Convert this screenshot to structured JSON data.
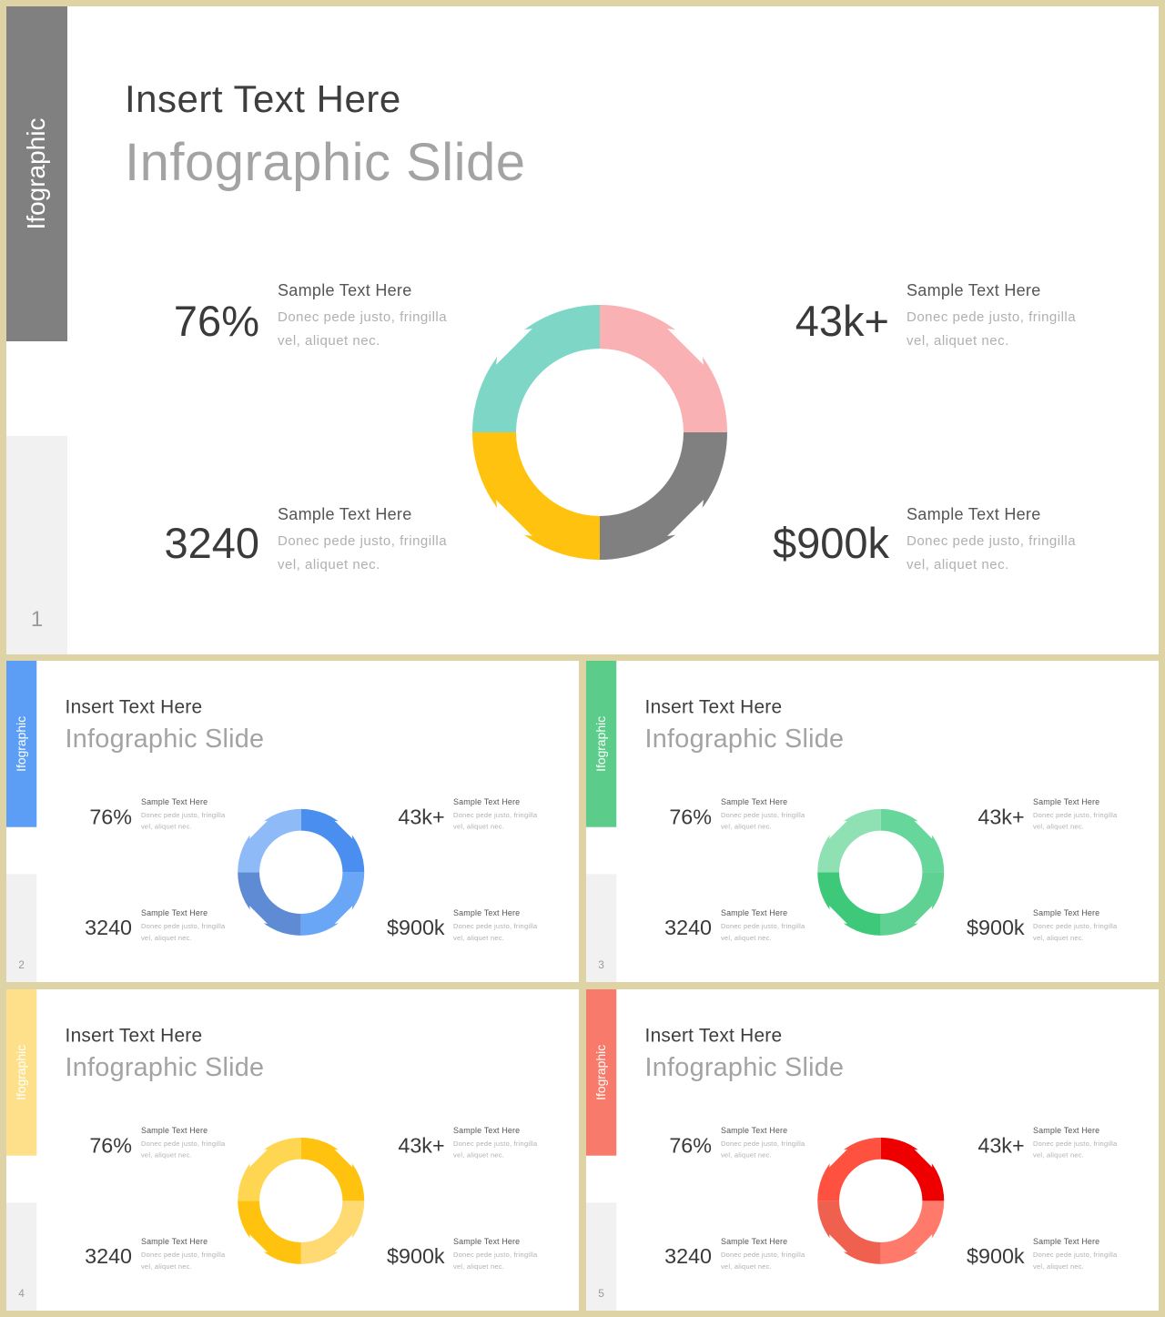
{
  "slides": [
    {
      "number": "1",
      "tab_label": "Ifographic",
      "tab_color": "#808080",
      "title_line1": "Insert Text Here",
      "title_line2": "Infographic Slide",
      "segment_colors": [
        "#f9b1b3",
        "#808080",
        "#ffc20e",
        "#7ed6c7"
      ],
      "stats": [
        {
          "value": "76%",
          "title": "Sample  Text Here",
          "body": "Donec pede justo, fringilla  vel, aliquet nec."
        },
        {
          "value": "43k+",
          "title": "Sample  Text Here",
          "body": "Donec pede justo, fringilla  vel, aliquet nec."
        },
        {
          "value": "3240",
          "title": "Sample  Text Here",
          "body": "Donec pede justo, fringilla  vel, aliquet nec."
        },
        {
          "value": "$900k",
          "title": "Sample  Text Here",
          "body": "Donec pede justo, fringilla  vel, aliquet nec."
        }
      ]
    },
    {
      "number": "2",
      "tab_label": "Ifographic",
      "tab_color": "#5c9ef5",
      "title_line1": "Insert Text Here",
      "title_line2": "Infographic Slide",
      "segment_colors": [
        "#4a8ef0",
        "#6aa6f6",
        "#5e8bd4",
        "#8fbaf8"
      ],
      "stats": [
        {
          "value": "76%",
          "title": "Sample  Text Here",
          "body": "Donec pede justo, fringilla  vel, aliquet nec."
        },
        {
          "value": "43k+",
          "title": "Sample  Text Here",
          "body": "Donec pede justo, fringilla  vel, aliquet nec."
        },
        {
          "value": "3240",
          "title": "Sample  Text Here",
          "body": "Donec pede justo, fringilla  vel, aliquet nec."
        },
        {
          "value": "$900k",
          "title": "Sample  Text Here",
          "body": "Donec pede justo, fringilla  vel, aliquet nec."
        }
      ]
    },
    {
      "number": "3",
      "tab_label": "Ifographic",
      "tab_color": "#5ccc8a",
      "title_line1": "Insert Text Here",
      "title_line2": "Infographic Slide",
      "segment_colors": [
        "#66d69a",
        "#5fd192",
        "#3ec87a",
        "#8fe0b3"
      ],
      "stats": [
        {
          "value": "76%",
          "title": "Sample  Text Here",
          "body": "Donec pede justo, fringilla  vel, aliquet nec."
        },
        {
          "value": "43k+",
          "title": "Sample  Text Here",
          "body": "Donec pede justo, fringilla  vel, aliquet nec."
        },
        {
          "value": "3240",
          "title": "Sample  Text Here",
          "body": "Donec pede justo, fringilla  vel, aliquet nec."
        },
        {
          "value": "$900k",
          "title": "Sample  Text Here",
          "body": "Donec pede justo, fringilla  vel, aliquet nec."
        }
      ]
    },
    {
      "number": "4",
      "tab_label": "Ifographic",
      "tab_color": "#ffe08a",
      "title_line1": "Insert Text Here",
      "title_line2": "Infographic Slide",
      "segment_colors": [
        "#ffc20e",
        "#ffd972",
        "#ffc20e",
        "#ffd651"
      ],
      "stats": [
        {
          "value": "76%",
          "title": "Sample  Text Here",
          "body": "Donec pede justo, fringilla  vel, aliquet nec."
        },
        {
          "value": "43k+",
          "title": "Sample  Text Here",
          "body": "Donec pede justo, fringilla  vel, aliquet nec."
        },
        {
          "value": "3240",
          "title": "Sample  Text Here",
          "body": "Donec pede justo, fringilla  vel, aliquet nec."
        },
        {
          "value": "$900k",
          "title": "Sample  Text Here",
          "body": "Donec pede justo, fringilla  vel, aliquet nec."
        }
      ]
    },
    {
      "number": "5",
      "tab_label": "Ifographic",
      "tab_color": "#f77a6a",
      "title_line1": "Insert Text Here",
      "title_line2": "Infographic Slide",
      "segment_colors": [
        "#ee0000",
        "#ff7a6a",
        "#f0604e",
        "#ff5040"
      ],
      "stats": [
        {
          "value": "76%",
          "title": "Sample  Text Here",
          "body": "Donec pede justo, fringilla  vel, aliquet nec."
        },
        {
          "value": "43k+",
          "title": "Sample  Text Here",
          "body": "Donec pede justo, fringilla  vel, aliquet nec."
        },
        {
          "value": "3240",
          "title": "Sample  Text Here",
          "body": "Donec pede justo, fringilla  vel, aliquet nec."
        },
        {
          "value": "$900k",
          "title": "Sample  Text Here",
          "body": "Donec pede justo, fringilla  vel, aliquet nec."
        }
      ]
    }
  ]
}
